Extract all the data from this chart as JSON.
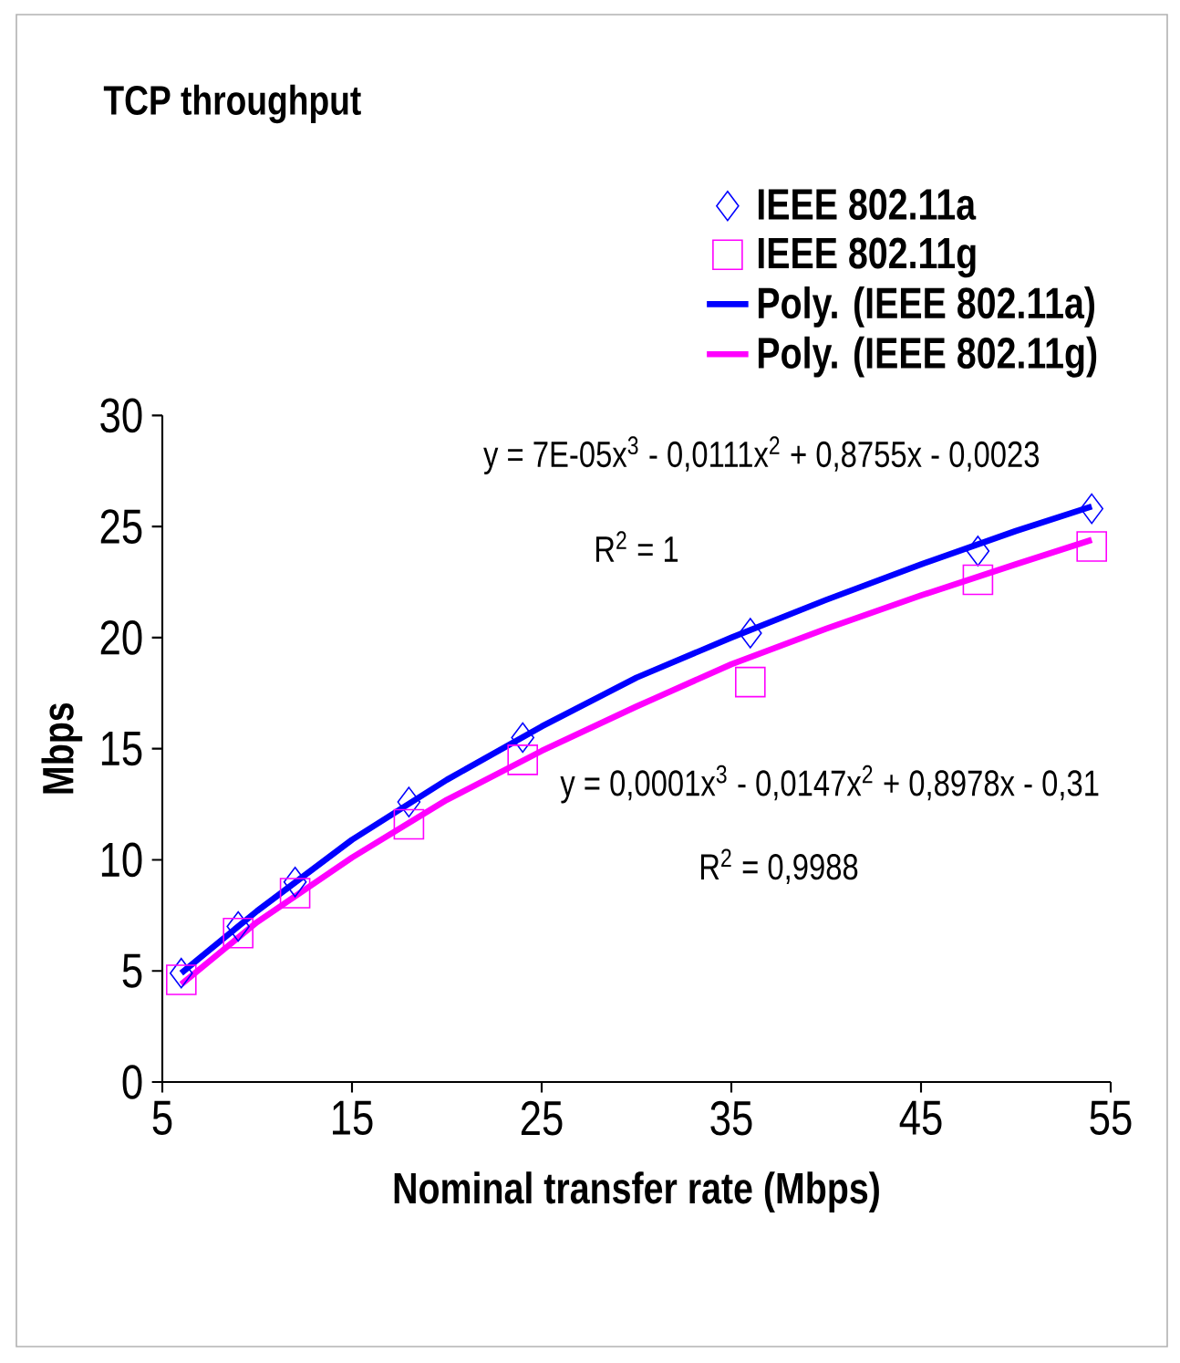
{
  "chart_data": {
    "type": "scatter",
    "title": "TCP throughput",
    "xlabel": "Nominal transfer rate (Mbps)",
    "ylabel": "Mbps",
    "xlim": [
      5,
      55
    ],
    "xticks": [
      5,
      15,
      25,
      35,
      45,
      55
    ],
    "ylim": [
      0,
      30
    ],
    "yticks": [
      0,
      5,
      10,
      15,
      20,
      25,
      30
    ],
    "legend": "top right",
    "series": [
      {
        "name": "IEEE 802.11a",
        "marker": "diamond",
        "color": "#0000ff",
        "x": [
          6,
          9,
          12,
          18,
          24,
          36,
          48,
          54
        ],
        "values": [
          4.9,
          7.0,
          9.0,
          12.6,
          15.5,
          20.2,
          23.9,
          25.8
        ]
      },
      {
        "name": "IEEE 802.11g",
        "marker": "square",
        "color": "#ff00ff",
        "x": [
          6,
          9,
          12,
          18,
          24,
          36,
          48,
          54
        ],
        "values": [
          4.6,
          6.7,
          8.5,
          11.6,
          14.5,
          18.0,
          22.6,
          24.1
        ]
      },
      {
        "name": "Poly. (IEEE 802.11a)",
        "type": "line",
        "color": "#0000ff",
        "x": [
          6,
          10,
          15,
          20,
          25,
          30,
          35,
          40,
          45,
          50,
          54
        ],
        "values": [
          4.9,
          7.7,
          10.9,
          13.6,
          16.0,
          18.2,
          20.0,
          21.7,
          23.3,
          24.8,
          25.9
        ]
      },
      {
        "name": "Poly. (IEEE 802.11g)",
        "type": "line",
        "color": "#ff00ff",
        "x": [
          6,
          10,
          15,
          20,
          25,
          30,
          35,
          40,
          45,
          50,
          54
        ],
        "values": [
          4.4,
          7.2,
          10.1,
          12.7,
          14.9,
          16.9,
          18.8,
          20.4,
          21.9,
          23.3,
          24.4
        ]
      }
    ],
    "annotations": [
      "y = 7E-05x$^{3}$ - 0,0111x$^{2}$ + 0,8755x - 0,0023",
      "R$^{2}$ = 1",
      "y = 0,0001x$^{3}$ - 0,0147x$^{2}$ + 0,8978x - 0,31",
      "R$^{2}$ = 0,9988"
    ]
  }
}
